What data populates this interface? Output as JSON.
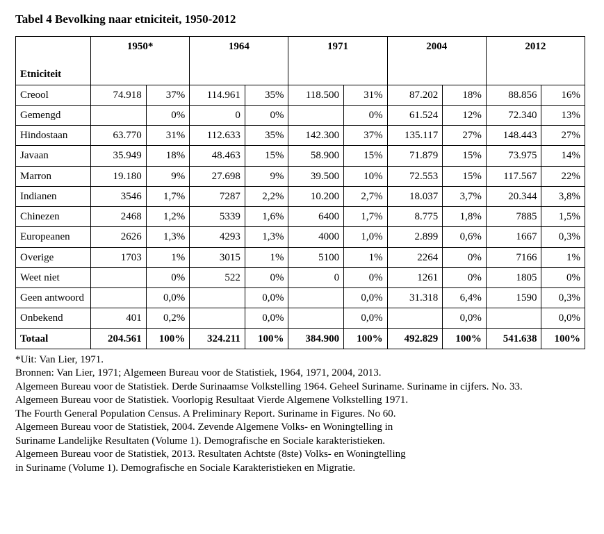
{
  "title": "Tabel 4 Bevolking naar etniciteit, 1950-2012",
  "header": {
    "rowLabel": "Etniciteit",
    "years": [
      "1950*",
      "1964",
      "1971",
      "2004",
      "2012"
    ]
  },
  "rows": [
    {
      "label": "Creool",
      "cells": [
        "74.918",
        "37%",
        "114.961",
        "35%",
        "118.500",
        "31%",
        "87.202",
        "18%",
        "88.856",
        "16%"
      ]
    },
    {
      "label": "Gemengd",
      "cells": [
        "",
        "0%",
        "0",
        "0%",
        "",
        "0%",
        "61.524",
        "12%",
        "72.340",
        "13%"
      ]
    },
    {
      "label": "Hindostaan",
      "cells": [
        "63.770",
        "31%",
        "112.633",
        "35%",
        "142.300",
        "37%",
        "135.117",
        "27%",
        "148.443",
        "27%"
      ]
    },
    {
      "label": "Javaan",
      "cells": [
        "35.949",
        "18%",
        "48.463",
        "15%",
        "58.900",
        "15%",
        "71.879",
        "15%",
        "73.975",
        "14%"
      ]
    },
    {
      "label": "Marron",
      "cells": [
        "19.180",
        "9%",
        "27.698",
        "9%",
        "39.500",
        "10%",
        "72.553",
        "15%",
        "117.567",
        "22%"
      ]
    },
    {
      "label": "Indianen",
      "cells": [
        "3546",
        "1,7%",
        "7287",
        "2,2%",
        "10.200",
        "2,7%",
        "18.037",
        "3,7%",
        "20.344",
        "3,8%"
      ]
    },
    {
      "label": "Chinezen",
      "cells": [
        "2468",
        "1,2%",
        "5339",
        "1,6%",
        "6400",
        "1,7%",
        "8.775",
        "1,8%",
        "7885",
        "1,5%"
      ]
    },
    {
      "label": "Europeanen",
      "cells": [
        "2626",
        "1,3%",
        "4293",
        "1,3%",
        "4000",
        "1,0%",
        "2.899",
        "0,6%",
        "1667",
        "0,3%"
      ]
    },
    {
      "label": "Overige",
      "cells": [
        "1703",
        "1%",
        "3015",
        "1%",
        "5100",
        "1%",
        "2264",
        "0%",
        "7166",
        "1%"
      ]
    },
    {
      "label": "Weet niet",
      "cells": [
        "",
        "0%",
        "522",
        "0%",
        "0",
        "0%",
        "1261",
        "0%",
        "1805",
        "0%"
      ]
    },
    {
      "label": "Geen antwoord",
      "cells": [
        "",
        "0,0%",
        "",
        "0,0%",
        "",
        "0,0%",
        "31.318",
        "6,4%",
        "1590",
        "0,3%"
      ]
    },
    {
      "label": "Onbekend",
      "cells": [
        "401",
        "0,2%",
        "",
        "0,0%",
        "",
        "0,0%",
        "",
        "0,0%",
        "",
        "0,0%"
      ]
    }
  ],
  "total": {
    "label": "Totaal",
    "cells": [
      "204.561",
      "100%",
      "324.211",
      "100%",
      "384.900",
      "100%",
      "492.829",
      "100%",
      "541.638",
      "100%"
    ]
  },
  "footnotes": [
    "*Uit: Van Lier, 1971.",
    "Bronnen: Van Lier, 1971; Algemeen Bureau voor de Statistiek, 1964, 1971, 2004, 2013.",
    "Algemeen Bureau voor de Statistiek. Derde Surinaamse Volkstelling 1964. Geheel Suriname. Suriname in cijfers. No. 33.",
    "Algemeen Bureau voor de Statistiek. Voorlopig Resultaat Vierde Algemene Volkstelling 1971.",
    "The Fourth General Population Census. A Preliminary Report. Suriname in Figures. No 60.",
    "Algemeen Bureau voor de Statistiek, 2004. Zevende Algemene Volks- en Woningtelling in",
    "Suriname Landelijke Resultaten (Volume 1). Demografische en Sociale karakteristieken.",
    "Algemeen Bureau voor de Statistiek, 2013. Resultaten Achtste (8ste) Volks- en Woningtelling",
    "in Suriname (Volume 1). Demografische en Sociale Karakteristieken en Migratie."
  ]
}
